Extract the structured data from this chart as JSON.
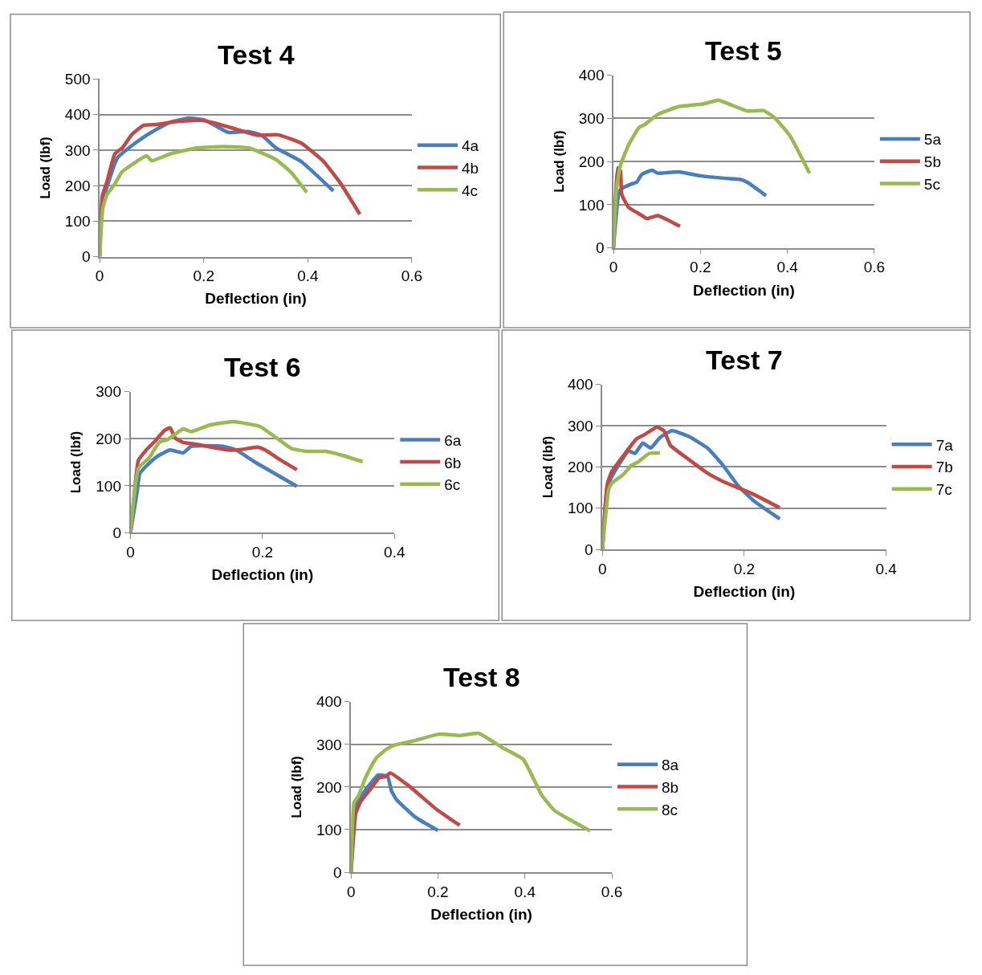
{
  "chart_data": [
    {
      "type": "line",
      "title": "Test 4",
      "xlabel": "Deflection (in)",
      "ylabel": "Load (lbf)",
      "xlim": [
        0,
        0.6
      ],
      "xticks": [
        0,
        0.2,
        0.4,
        0.6
      ],
      "ylim": [
        0,
        500
      ],
      "yticks": [
        0,
        100,
        200,
        300,
        400,
        500
      ],
      "grid": "y",
      "legend": "right",
      "series": [
        {
          "name": "4a",
          "color": "#4a7ebb",
          "x": [
            0,
            0.005,
            0.034,
            0.064,
            0.085,
            0.115,
            0.135,
            0.171,
            0.201,
            0.221,
            0.247,
            0.287,
            0.312,
            0.338,
            0.388,
            0.449
          ],
          "values": [
            0,
            150,
            278,
            315,
            337,
            363,
            378,
            390,
            385,
            370,
            350,
            352,
            341,
            307,
            267,
            185
          ]
        },
        {
          "name": "4b",
          "color": "#be4b48",
          "x": [
            0,
            0.005,
            0.014,
            0.029,
            0.044,
            0.062,
            0.085,
            0.11,
            0.15,
            0.196,
            0.221,
            0.262,
            0.302,
            0.343,
            0.388,
            0.429,
            0.464,
            0.5
          ],
          "values": [
            0,
            170,
            211,
            289,
            307,
            344,
            370,
            372,
            381,
            384,
            376,
            359,
            342,
            343,
            319,
            270,
            204,
            119
          ]
        },
        {
          "name": "4c",
          "color": "#98b954",
          "x": [
            0,
            0.006,
            0.014,
            0.029,
            0.042,
            0.059,
            0.09,
            0.1,
            0.135,
            0.186,
            0.236,
            0.287,
            0.338,
            0.368,
            0.398
          ],
          "values": [
            0,
            137,
            174,
            204,
            237,
            256,
            284,
            270,
            289,
            306,
            310,
            306,
            274,
            237,
            181
          ]
        }
      ]
    },
    {
      "type": "line",
      "title": "Test 5",
      "xlabel": "Deflection (in)",
      "ylabel": "Load (lbf)",
      "xlim": [
        0,
        0.6
      ],
      "xticks": [
        0,
        0.2,
        0.4,
        0.6
      ],
      "ylim": [
        0,
        400
      ],
      "yticks": [
        0,
        100,
        200,
        300,
        400
      ],
      "grid": "y",
      "legend": "right",
      "series": [
        {
          "name": "5a",
          "color": "#4a7ebb",
          "x": [
            0,
            0.013,
            0.022,
            0.041,
            0.053,
            0.065,
            0.089,
            0.102,
            0.15,
            0.199,
            0.26,
            0.29,
            0.308,
            0.351
          ],
          "values": [
            0,
            130,
            139,
            148,
            152,
            170,
            180,
            173,
            176,
            167,
            161,
            159,
            152,
            121
          ]
        },
        {
          "name": "5b",
          "color": "#be4b48",
          "x": [
            0,
            0.005,
            0.01,
            0.016,
            0.019,
            0.035,
            0.059,
            0.077,
            0.102,
            0.153
          ],
          "values": [
            0,
            120,
            185,
            179,
            124,
            94,
            79,
            68,
            75,
            50
          ]
        },
        {
          "name": "5c",
          "color": "#98b954",
          "x": [
            0,
            0.007,
            0.016,
            0.035,
            0.059,
            0.071,
            0.102,
            0.15,
            0.205,
            0.241,
            0.266,
            0.308,
            0.345,
            0.369,
            0.405,
            0.451
          ],
          "values": [
            0,
            136,
            191,
            239,
            279,
            285,
            309,
            327,
            333,
            342,
            333,
            317,
            318,
            303,
            261,
            173
          ]
        }
      ]
    },
    {
      "type": "line",
      "title": "Test 6",
      "xlabel": "Deflection (in)",
      "ylabel": "Load (lbf)",
      "xlim": [
        0,
        0.4
      ],
      "xticks": [
        0,
        0.2,
        0.4
      ],
      "ylim": [
        0,
        300
      ],
      "yticks": [
        0,
        100,
        200,
        300
      ],
      "grid": "y",
      "legend": "right",
      "series": [
        {
          "name": "6a",
          "color": "#4a7ebb",
          "x": [
            0,
            0.01,
            0.014,
            0.024,
            0.04,
            0.06,
            0.08,
            0.092,
            0.14,
            0.16,
            0.188,
            0.252
          ],
          "values": [
            0,
            87,
            126,
            142,
            162,
            176,
            170,
            184,
            184,
            176,
            151,
            99
          ]
        },
        {
          "name": "6b",
          "color": "#be4b48",
          "x": [
            0,
            0.006,
            0.012,
            0.024,
            0.036,
            0.052,
            0.06,
            0.068,
            0.08,
            0.1,
            0.148,
            0.168,
            0.192,
            0.204,
            0.228,
            0.252
          ],
          "values": [
            0,
            87,
            154,
            176,
            193,
            218,
            223,
            201,
            192,
            188,
            176,
            177,
            182,
            176,
            154,
            134
          ]
        },
        {
          "name": "6c",
          "color": "#98b954",
          "x": [
            0,
            0.012,
            0.028,
            0.044,
            0.056,
            0.08,
            0.092,
            0.12,
            0.156,
            0.196,
            0.216,
            0.244,
            0.268,
            0.296,
            0.32,
            0.352
          ],
          "values": [
            0,
            137,
            159,
            193,
            198,
            221,
            215,
            229,
            236,
            226,
            207,
            179,
            173,
            173,
            165,
            151
          ]
        }
      ]
    },
    {
      "type": "line",
      "title": "Test 7",
      "xlabel": "Deflection (in)",
      "ylabel": "Load (lbf)",
      "xlim": [
        0,
        0.4
      ],
      "xticks": [
        0,
        0.2,
        0.4
      ],
      "ylim": [
        0,
        400
      ],
      "yticks": [
        0,
        100,
        200,
        300,
        400
      ],
      "grid": "y",
      "legend": "right",
      "series": [
        {
          "name": "7a",
          "color": "#4a7ebb",
          "x": [
            0,
            0.007,
            0.018,
            0.037,
            0.046,
            0.057,
            0.068,
            0.081,
            0.098,
            0.122,
            0.148,
            0.17,
            0.192,
            0.214,
            0.25
          ],
          "values": [
            0,
            153,
            191,
            239,
            233,
            258,
            246,
            271,
            288,
            274,
            246,
            204,
            153,
            117,
            74
          ]
        },
        {
          "name": "7b",
          "color": "#be4b48",
          "x": [
            0,
            0.007,
            0.013,
            0.029,
            0.048,
            0.059,
            0.077,
            0.087,
            0.096,
            0.118,
            0.148,
            0.17,
            0.192,
            0.214,
            0.25
          ],
          "values": [
            0,
            159,
            188,
            226,
            268,
            278,
            297,
            287,
            252,
            223,
            185,
            165,
            149,
            133,
            101
          ]
        },
        {
          "name": "7c",
          "color": "#98b954",
          "x": [
            0,
            0.009,
            0.014,
            0.029,
            0.041,
            0.051,
            0.066,
            0.081
          ],
          "values": [
            0,
            146,
            162,
            181,
            204,
            213,
            233,
            234
          ]
        }
      ]
    },
    {
      "type": "line",
      "title": "Test 8",
      "xlabel": "Deflection (in)",
      "ylabel": "Load (lbf)",
      "xlim": [
        0,
        0.6
      ],
      "xticks": [
        0,
        0.2,
        0.4,
        0.6
      ],
      "ylim": [
        0,
        400
      ],
      "yticks": [
        0,
        100,
        200,
        300,
        400
      ],
      "grid": "y",
      "legend": "right",
      "series": [
        {
          "name": "8a",
          "color": "#4a7ebb",
          "x": [
            0,
            0.011,
            0.026,
            0.044,
            0.062,
            0.084,
            0.093,
            0.105,
            0.147,
            0.2
          ],
          "values": [
            0,
            157,
            182,
            207,
            228,
            225,
            191,
            170,
            130,
            98
          ]
        },
        {
          "name": "8b",
          "color": "#be4b48",
          "x": [
            0,
            0.011,
            0.023,
            0.044,
            0.065,
            0.081,
            0.09,
            0.135,
            0.196,
            0.25
          ],
          "values": [
            0,
            139,
            167,
            194,
            222,
            225,
            233,
            201,
            148,
            110
          ]
        },
        {
          "name": "8c",
          "color": "#98b954",
          "x": [
            0,
            0.007,
            0.017,
            0.032,
            0.044,
            0.059,
            0.081,
            0.099,
            0.147,
            0.202,
            0.25,
            0.293,
            0.347,
            0.396,
            0.438,
            0.468,
            0.55
          ],
          "values": [
            0,
            164,
            179,
            219,
            244,
            269,
            288,
            298,
            309,
            324,
            321,
            326,
            293,
            265,
            182,
            145,
            97
          ]
        }
      ]
    }
  ]
}
